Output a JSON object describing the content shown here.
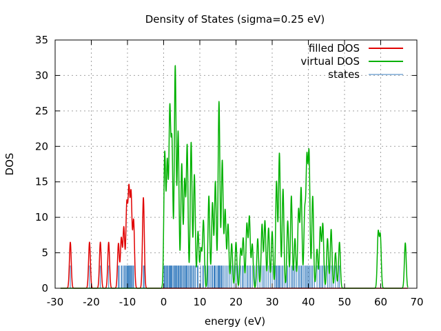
{
  "chart_data": {
    "type": "line",
    "title": "Density of States (sigma=0.25 eV)",
    "xlabel": "energy (eV)",
    "ylabel": "DOS",
    "xlim": [
      -30,
      70
    ],
    "ylim": [
      0,
      35
    ],
    "xticks": [
      -30,
      -20,
      -10,
      0,
      10,
      20,
      30,
      40,
      50,
      60,
      70
    ],
    "yticks": [
      0,
      5,
      10,
      15,
      20,
      25,
      30,
      35
    ],
    "grid": true,
    "legend_position": "top-right",
    "sigma": 0.25,
    "series": [
      {
        "name": "filled DOS",
        "color": "#e00000",
        "peaks": [
          [
            -25.8,
            6.5
          ],
          [
            -20.5,
            6.5
          ],
          [
            -17.5,
            6.5
          ],
          [
            -15.2,
            6.5
          ],
          [
            -12.5,
            6.3
          ],
          [
            -11.7,
            7.0
          ],
          [
            -11.0,
            8.5
          ],
          [
            -10.2,
            11.5
          ],
          [
            -9.6,
            13.3
          ],
          [
            -9.0,
            12.9
          ],
          [
            -8.3,
            9.5
          ],
          [
            -5.6,
            12.8
          ]
        ]
      },
      {
        "name": "virtual DOS",
        "color": "#00b000",
        "peaks": [
          [
            0.3,
            19.0
          ],
          [
            1.0,
            17.5
          ],
          [
            1.7,
            24.5
          ],
          [
            2.3,
            20.0
          ],
          [
            3.2,
            31.3
          ],
          [
            4.0,
            22.0
          ],
          [
            5.0,
            17.5
          ],
          [
            5.8,
            15.0
          ],
          [
            6.5,
            20.0
          ],
          [
            7.6,
            20.6
          ],
          [
            8.5,
            16.0
          ],
          [
            9.5,
            8.0
          ],
          [
            10.3,
            5.5
          ],
          [
            11.0,
            9.5
          ],
          [
            12.5,
            13.0
          ],
          [
            13.5,
            12.0
          ],
          [
            14.3,
            15.0
          ],
          [
            15.3,
            26.3
          ],
          [
            16.2,
            18.0
          ],
          [
            17.0,
            11.0
          ],
          [
            17.8,
            9.0
          ],
          [
            18.8,
            6.3
          ],
          [
            20.0,
            6.5
          ],
          [
            21.3,
            5.5
          ],
          [
            22.0,
            7.0
          ],
          [
            23.0,
            9.0
          ],
          [
            23.7,
            10.0
          ],
          [
            24.5,
            6.2
          ],
          [
            26.0,
            7.0
          ],
          [
            27.2,
            9.0
          ],
          [
            28.0,
            9.5
          ],
          [
            29.0,
            8.5
          ],
          [
            30.0,
            8.0
          ],
          [
            31.2,
            15.0
          ],
          [
            32.0,
            19.0
          ],
          [
            33.0,
            14.0
          ],
          [
            34.3,
            9.5
          ],
          [
            35.3,
            13.0
          ],
          [
            36.3,
            7.0
          ],
          [
            37.3,
            11.0
          ],
          [
            38.0,
            14.0
          ],
          [
            39.0,
            10.5
          ],
          [
            39.6,
            17.5
          ],
          [
            40.2,
            18.5
          ],
          [
            41.2,
            13.0
          ],
          [
            42.4,
            5.5
          ],
          [
            43.3,
            8.5
          ],
          [
            44.0,
            9.0
          ],
          [
            45.3,
            7.0
          ],
          [
            46.3,
            8.3
          ],
          [
            47.5,
            5.0
          ],
          [
            48.6,
            6.5
          ],
          [
            59.3,
            7.7
          ],
          [
            59.9,
            7.3
          ],
          [
            66.8,
            6.4
          ]
        ]
      },
      {
        "name": "states",
        "color": "#3a7fc0",
        "height": 3.2,
        "energies": [
          -25.8,
          -20.5,
          -17.5,
          -15.2,
          -12.5,
          -12.3,
          -11.7,
          -11.5,
          -11.0,
          -10.8,
          -10.5,
          -10.2,
          -10.0,
          -9.8,
          -9.6,
          -9.4,
          -9.2,
          -9.0,
          -8.8,
          -8.5,
          -8.3,
          -5.6,
          -5.4,
          0.1,
          0.3,
          0.5,
          0.8,
          1.0,
          1.2,
          1.5,
          1.7,
          1.9,
          2.1,
          2.3,
          2.6,
          2.9,
          3.0,
          3.2,
          3.4,
          3.6,
          3.9,
          4.1,
          4.3,
          4.6,
          4.8,
          5.0,
          5.3,
          5.6,
          5.8,
          6.1,
          6.3,
          6.5,
          6.8,
          7.1,
          7.4,
          7.6,
          7.9,
          8.2,
          8.5,
          8.8,
          9.3,
          9.5,
          10.2,
          10.8,
          11.0,
          11.6,
          12.2,
          12.5,
          12.9,
          13.3,
          13.5,
          13.9,
          14.1,
          14.3,
          14.7,
          15.0,
          15.2,
          15.3,
          15.5,
          15.7,
          16.0,
          16.2,
          16.6,
          17.0,
          17.4,
          17.8,
          18.3,
          18.8,
          19.5,
          20.0,
          20.6,
          21.3,
          21.8,
          22.0,
          22.5,
          23.0,
          23.3,
          23.7,
          24.0,
          24.5,
          25.2,
          26.0,
          26.6,
          27.2,
          27.6,
          28.0,
          28.5,
          29.0,
          29.5,
          30.0,
          30.6,
          31.0,
          31.2,
          31.5,
          31.8,
          32.0,
          32.3,
          32.7,
          33.0,
          33.5,
          34.0,
          34.3,
          34.8,
          35.3,
          35.6,
          36.0,
          36.3,
          36.8,
          37.3,
          37.6,
          38.0,
          38.2,
          38.6,
          39.0,
          39.3,
          39.6,
          39.9,
          40.2,
          40.5,
          40.9,
          41.2,
          41.7,
          42.4,
          43.0,
          43.3,
          43.7,
          44.0,
          44.6,
          45.3,
          45.8,
          46.3,
          46.8,
          47.5,
          48.2,
          48.6
        ]
      }
    ]
  }
}
